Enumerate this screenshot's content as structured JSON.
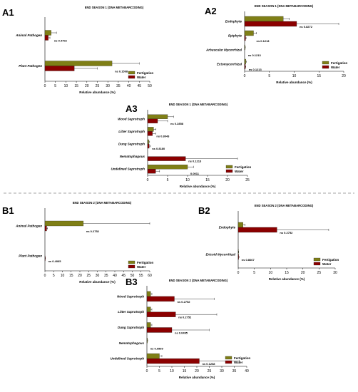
{
  "colors": {
    "fertigation": "#7f7f16",
    "water": "#8b0000"
  },
  "chart_data": [
    {
      "panel": "A1",
      "type": "bar",
      "orientation": "horizontal",
      "title": "END SEASON 1 (DNA METABARCODING)",
      "xlabel": "Relative abundance (%)",
      "xlim": [
        0,
        50
      ],
      "xticks": [
        "0",
        "5",
        "10",
        "15",
        "20",
        "25",
        "30",
        "35",
        "40",
        "45",
        "50"
      ],
      "categories": [
        "Animal Pathogen",
        "Plant Pathogen"
      ],
      "series": [
        {
          "name": "Fertigation",
          "values": [
            3.0,
            32.0
          ],
          "errors": [
            2.5,
            13.0
          ]
        },
        {
          "name": "Water",
          "values": [
            1.6,
            14.0
          ],
          "errors": [
            0.8,
            11.0
          ]
        }
      ],
      "annotations": [
        "ns 0.4702",
        "ns 0.1598"
      ],
      "legend": "bottom-right"
    },
    {
      "panel": "A2",
      "type": "bar",
      "orientation": "horizontal",
      "title": "END SEASON 1 (DNA METABARCODING)",
      "xlabel": "Relative abundance (%)",
      "xlim": [
        0,
        20
      ],
      "xticks": [
        "0",
        "5",
        "10",
        "15",
        "20"
      ],
      "categories": [
        "Endophyte",
        "Epiphyte",
        "Arbuscular Mycorrhizal",
        "Ectomycorrhizal"
      ],
      "series": [
        {
          "name": "Fertigation",
          "values": [
            7.8,
            1.8,
            0.1,
            0.25
          ],
          "errors": [
            1.2,
            0.6,
            0.05,
            0.1
          ]
        },
        {
          "name": "Water",
          "values": [
            10.5,
            0.2,
            0.0,
            0.15
          ],
          "errors": [
            8.5,
            0.1,
            0.0,
            0.1
          ]
        }
      ],
      "annotations": [
        "ns 0.8272",
        "ns 0.1213",
        "ns 0.1213",
        "ns 0.1213"
      ],
      "legend": "bottom-right"
    },
    {
      "panel": "A3",
      "type": "bar",
      "orientation": "horizontal",
      "title": "END SEASON 1 (DNA METABARCODING)",
      "xlabel": "Relative abundance (%)",
      "xlim": [
        0,
        25
      ],
      "xticks": [
        "0",
        "5",
        "10",
        "15",
        "20",
        "25"
      ],
      "categories": [
        "Wood Saprotroph",
        "Litter Saprotroph",
        "Dung Saprotroph",
        "Nematophagous",
        "Undefined Saprotroph"
      ],
      "series": [
        {
          "name": "Fertigation",
          "values": [
            5.0,
            1.5,
            0.3,
            0.0,
            10.0
          ],
          "errors": [
            1.5,
            0.6,
            0.2,
            0.0,
            1.5
          ]
        },
        {
          "name": "Water",
          "values": [
            2.5,
            1.2,
            0.4,
            9.5,
            2.0
          ],
          "errors": [
            2.5,
            0.8,
            0.3,
            13.0,
            1.0
          ]
        }
      ],
      "annotations": [
        "ns 0.2858",
        "ns 0.8043",
        "ns 0.8180",
        "ns 0.1213",
        "0.0011"
      ],
      "legend": "bottom-right"
    },
    {
      "panel": "B1",
      "type": "bar",
      "orientation": "horizontal",
      "title": "END SEASON 2 (DNA METABARCODING)",
      "xlabel": "Relative abundance (%)",
      "xlim": [
        0,
        60
      ],
      "xticks": [
        "0",
        "5",
        "10",
        "15",
        "20",
        "25",
        "30",
        "35",
        "40",
        "45",
        "50",
        "55",
        "60"
      ],
      "categories": [
        "Animal Pathogen",
        "Plant Pathogen"
      ],
      "series": [
        {
          "name": "Fertigation",
          "values": [
            22.0,
            0.0
          ],
          "errors": [
            38.0,
            0.0
          ]
        },
        {
          "name": "Water",
          "values": [
            1.0,
            0.2
          ],
          "errors": [
            0.5,
            0.1
          ]
        }
      ],
      "annotations": [
        "ns 0.2752",
        "ns 0.4065"
      ],
      "legend": "bottom-right"
    },
    {
      "panel": "B2",
      "type": "bar",
      "orientation": "horizontal",
      "title": "END SEASON 2 (DNA METABARCODING)",
      "xlabel": "Relative abundance (%)",
      "xlim": [
        0,
        30
      ],
      "xticks": [
        "0",
        "5",
        "10",
        "15",
        "20",
        "25",
        "30"
      ],
      "categories": [
        "Endophyte",
        "Ericoid Mycorrhizal"
      ],
      "series": [
        {
          "name": "Fertigation",
          "values": [
            1.5,
            0.1
          ],
          "errors": [
            0.6,
            0.05
          ]
        },
        {
          "name": "Water",
          "values": [
            12.0,
            0.15
          ],
          "errors": [
            16.0,
            0.1
          ]
        }
      ],
      "annotations": [
        "ns 0.2752",
        "ns 0.8667"
      ],
      "legend": "bottom-right"
    },
    {
      "panel": "B3",
      "type": "bar",
      "orientation": "horizontal",
      "title": "END SEASON 2 (DNA METABARCODING)",
      "xlabel": "Relative abundance (%)",
      "xlim": [
        0,
        40
      ],
      "xticks": [
        "0",
        "5",
        "10",
        "15",
        "20",
        "25",
        "30",
        "35",
        "40"
      ],
      "categories": [
        "Wood Saprotroph",
        "Litter Saprotroph",
        "Dung Saprotroph",
        "Nematophagous",
        "Undefined Saprotroph"
      ],
      "series": [
        {
          "name": "Fertigation",
          "values": [
            1.5,
            1.5,
            1.5,
            0.2,
            5.0
          ],
          "errors": [
            0.5,
            0.5,
            0.5,
            0.1,
            1.0
          ]
        },
        {
          "name": "Water",
          "values": [
            11.0,
            11.5,
            10.0,
            0.0,
            21.0
          ],
          "errors": [
            16.0,
            16.5,
            15.0,
            0.0,
            16.0
          ]
        }
      ],
      "annotations": [
        "ns 0.2752",
        "ns 0.2752",
        "ns 0.0495",
        "ns 0.0569",
        "ns 0.1268"
      ],
      "legend": "bottom-right"
    }
  ]
}
